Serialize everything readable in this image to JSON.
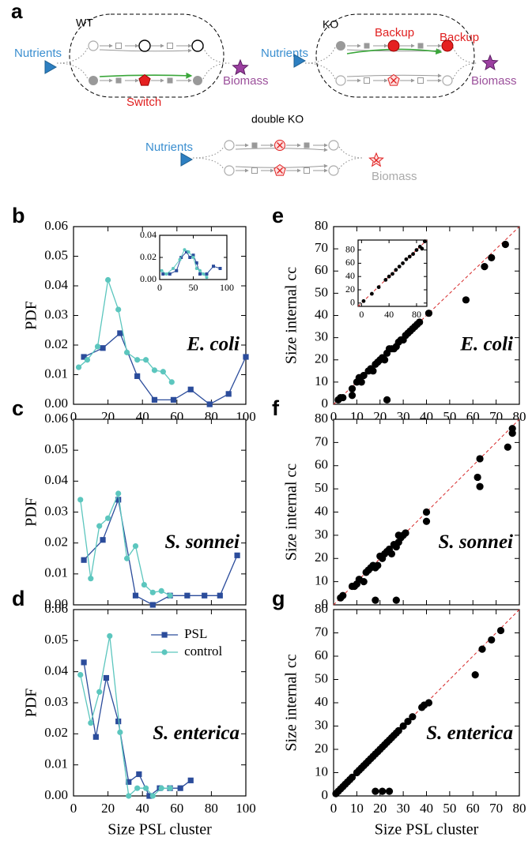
{
  "diagram": {
    "panel": "a",
    "wt": {
      "label": "WT",
      "nutrients": "Nutrients",
      "biomass": "Biomass",
      "switch": "Switch"
    },
    "ko": {
      "label": "KO",
      "nutrients": "Nutrients",
      "biomass": "Biomass",
      "backup": [
        "Backup",
        "Backup"
      ]
    },
    "double_ko": {
      "label": "double KO",
      "nutrients": "Nutrients",
      "biomass": "Biomass"
    }
  },
  "chart_data": [
    {
      "type": "line",
      "panel": "b",
      "annotation": "E. coli",
      "ylabel": "PDF",
      "xtick_labels": true,
      "xlim": [
        0,
        100
      ],
      "ylim": [
        0,
        0.06
      ],
      "xticks": [
        0,
        20,
        40,
        60,
        80,
        100
      ],
      "yticks": [
        {
          "value": 0,
          "label": "0.00"
        },
        0.01,
        0.02,
        0.03,
        0.04,
        0.05,
        0.06
      ],
      "series": [
        {
          "color": "#2b4c9b",
          "marker": "square",
          "x": [
            6,
            17,
            27,
            37,
            47,
            58,
            68,
            79,
            90,
            100
          ],
          "values": [
            0.016,
            0.019,
            0.024,
            0.0095,
            0.0015,
            0.0015,
            0.005,
            0,
            0.0035,
            0.016
          ]
        },
        {
          "color": "#5cc6be",
          "marker": "circle",
          "x": [
            3,
            8,
            14,
            20,
            26,
            31,
            37,
            42,
            47,
            52,
            57
          ],
          "values": [
            0.0125,
            0.015,
            0.0195,
            0.042,
            0.032,
            0.0175,
            0.015,
            0.015,
            0.0115,
            0.011,
            0.0075
          ]
        }
      ],
      "inset": {
        "type": "line",
        "xlim": [
          0,
          100
        ],
        "ylim": [
          0,
          0.04
        ],
        "xticks": [
          0,
          50,
          100
        ],
        "yticks": [
          {
            "value": 0,
            "label": "0.00"
          },
          0.02,
          0.04
        ],
        "series": [
          {
            "color": "#2b4c9b",
            "marker": "square",
            "x": [
              5,
              15,
              25,
              32,
              40,
              45,
              50,
              55,
              60,
              70,
              80,
              90
            ],
            "values": [
              0.005,
              0.005,
              0.008,
              0.02,
              0.025,
              0.02,
              0.022,
              0.015,
              0.005,
              0.005,
              0.012,
              0.01
            ]
          },
          {
            "color": "#5cc6be",
            "marker": "circle",
            "x": [
              3,
              10,
              20,
              30,
              37,
              43,
              50,
              55,
              60,
              65,
              70
            ],
            "values": [
              0.008,
              0.005,
              0.01,
              0.018,
              0.027,
              0.025,
              0.02,
              0.01,
              0.008,
              0.005,
              0.002
            ]
          }
        ]
      }
    },
    {
      "type": "line",
      "panel": "c",
      "annotation": "S. sonnei",
      "ylabel": "PDF",
      "xtick_labels": false,
      "xlim": [
        0,
        100
      ],
      "ylim": [
        0,
        0.06
      ],
      "xticks": [
        0,
        20,
        40,
        60,
        80,
        100
      ],
      "yticks": [
        {
          "value": 0,
          "label": "0.00"
        },
        0.01,
        0.02,
        0.03,
        0.04,
        0.05,
        0.06
      ],
      "series": [
        {
          "color": "#2b4c9b",
          "marker": "square",
          "x": [
            6,
            17,
            26,
            36,
            46,
            56,
            66,
            76,
            85,
            95
          ],
          "values": [
            0.0145,
            0.021,
            0.034,
            0.003,
            0,
            0.003,
            0.003,
            0.003,
            0.003,
            0.016
          ]
        },
        {
          "color": "#5cc6be",
          "marker": "circle",
          "x": [
            4,
            10,
            15,
            20,
            26,
            31,
            36,
            41,
            46,
            51,
            56
          ],
          "values": [
            0.034,
            0.0085,
            0.0255,
            0.028,
            0.036,
            0.015,
            0.019,
            0.0065,
            0.004,
            0.0045,
            0.003
          ]
        }
      ]
    },
    {
      "type": "line",
      "panel": "d",
      "annotation": "S. enterica",
      "ylabel": "PDF",
      "xlabel": "Size PSL cluster",
      "xtick_labels": true,
      "legend": "upper center",
      "xlim": [
        0,
        100
      ],
      "ylim": [
        0,
        0.06
      ],
      "xticks": [
        0,
        20,
        40,
        60,
        80,
        100
      ],
      "yticks": [
        {
          "value": 0,
          "label": "0.00"
        },
        0.01,
        0.02,
        0.03,
        0.04,
        0.05,
        0.06
      ],
      "series": [
        {
          "name": "PSL",
          "color": "#2b4c9b",
          "marker": "square",
          "x": [
            6,
            13,
            19,
            26,
            32,
            38,
            44,
            50,
            56,
            62,
            68
          ],
          "values": [
            0.043,
            0.019,
            0.038,
            0.024,
            0.0045,
            0.007,
            0,
            0.0025,
            0.0025,
            0.0025,
            0.005
          ]
        },
        {
          "name": "control",
          "color": "#5cc6be",
          "marker": "circle",
          "x": [
            4,
            10,
            15,
            21,
            27,
            32,
            37,
            42,
            46,
            51,
            56
          ],
          "values": [
            0.039,
            0.0235,
            0.0335,
            0.0515,
            0.0205,
            0,
            0.0025,
            0.0025,
            0,
            0.0025,
            0.0025
          ]
        }
      ]
    },
    {
      "type": "scatter",
      "panel": "e",
      "annotation": "E. coli",
      "ylabel": "Size internal cc",
      "xtick_labels": true,
      "color": "#000000",
      "diagonal_color": "#d62728",
      "xlim": [
        0,
        80
      ],
      "ylim": [
        0,
        80
      ],
      "xticks": [
        0,
        10,
        20,
        30,
        40,
        50,
        60,
        70,
        80
      ],
      "yticks": [
        0,
        10,
        20,
        30,
        40,
        50,
        60,
        70,
        80
      ],
      "x": [
        2,
        3,
        4,
        8,
        8,
        10,
        11,
        12,
        13,
        15,
        16,
        17,
        18,
        19,
        20,
        21,
        22,
        23,
        23,
        24,
        25,
        26,
        27,
        28,
        29,
        30,
        31,
        32,
        33,
        34,
        35,
        36,
        37,
        41,
        57,
        65,
        68,
        74
      ],
      "values": [
        2,
        3,
        3,
        7,
        4,
        10,
        12,
        10,
        13,
        15,
        16,
        15,
        18,
        19,
        20,
        21,
        20,
        2,
        23,
        25,
        25,
        25,
        26,
        28,
        29,
        29,
        31,
        32,
        33,
        34,
        35,
        36,
        37,
        41,
        47,
        62,
        66,
        72
      ],
      "inset": {
        "type": "scatter",
        "color": "#000000",
        "diagonal_color": "#d62728",
        "xlim": [
          -5,
          95
        ],
        "ylim": [
          -5,
          95
        ],
        "xticks": [
          0,
          40,
          80
        ],
        "yticks": [
          0,
          20,
          40,
          60,
          80
        ],
        "x": [
          3,
          15,
          25,
          35,
          40,
          45,
          50,
          55,
          60,
          65,
          70,
          75,
          80,
          85,
          88,
          92
        ],
        "values": [
          3,
          14,
          24,
          35,
          40,
          44,
          50,
          55,
          60,
          66,
          70,
          74,
          80,
          85,
          82,
          93
        ]
      }
    },
    {
      "type": "scatter",
      "panel": "f",
      "annotation": "S. sonnei",
      "ylabel": "Size internal cc",
      "xtick_labels": false,
      "color": "#000000",
      "diagonal_color": "#d62728",
      "xlim": [
        0,
        80
      ],
      "ylim": [
        0,
        80
      ],
      "xticks": [
        0,
        10,
        20,
        30,
        40,
        50,
        60,
        70,
        80
      ],
      "yticks": [
        0,
        10,
        20,
        30,
        40,
        50,
        60,
        70,
        80
      ],
      "x": [
        3,
        4,
        8,
        9,
        10,
        11,
        13,
        14,
        15,
        16,
        17,
        18,
        18,
        19,
        20,
        21,
        22,
        23,
        24,
        25,
        26,
        27,
        27,
        28,
        28,
        29,
        30,
        31,
        40,
        40,
        62,
        63,
        63,
        75,
        77,
        77
      ],
      "values": [
        3,
        4,
        8,
        8,
        9,
        11,
        10,
        14,
        15,
        16,
        17,
        2,
        16,
        17,
        21,
        20,
        22,
        23,
        24,
        22,
        26,
        2,
        25,
        27,
        30,
        29,
        30,
        31,
        40,
        36,
        55,
        63,
        51,
        68,
        74,
        76
      ]
    },
    {
      "type": "scatter",
      "panel": "g",
      "annotation": "S. enterica",
      "ylabel": "Size internal cc",
      "xlabel": "Size PSL cluster",
      "xtick_labels": true,
      "color": "#000000",
      "diagonal_color": "#d62728",
      "xlim": [
        0,
        80
      ],
      "ylim": [
        0,
        80
      ],
      "xticks": [
        0,
        10,
        20,
        30,
        40,
        50,
        60,
        70,
        80
      ],
      "yticks": [
        0,
        10,
        20,
        30,
        40,
        50,
        60,
        70,
        80
      ],
      "x": [
        1,
        2,
        3,
        4,
        5,
        6,
        7,
        8,
        10,
        11,
        12,
        13,
        14,
        15,
        16,
        17,
        18,
        18,
        19,
        20,
        21,
        21,
        22,
        23,
        24,
        24,
        25,
        26,
        27,
        28,
        30,
        32,
        34,
        38,
        39,
        41,
        61,
        64,
        68,
        72
      ],
      "values": [
        1,
        2,
        3,
        4,
        5,
        6,
        7,
        8,
        10,
        11,
        12,
        13,
        14,
        15,
        16,
        17,
        18,
        2,
        19,
        20,
        21,
        2,
        22,
        23,
        24,
        2,
        25,
        26,
        27,
        28,
        30,
        32,
        34,
        38,
        39,
        40,
        52,
        63,
        67,
        71
      ]
    }
  ]
}
